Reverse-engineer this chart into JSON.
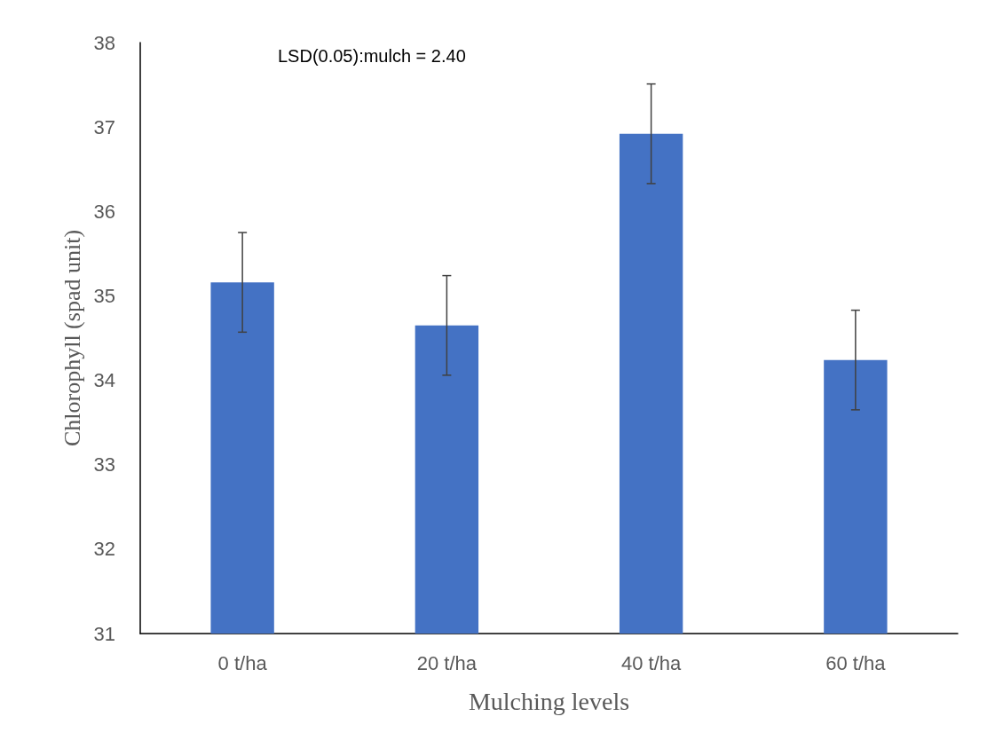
{
  "chart_data": {
    "type": "bar",
    "xlabel": "Mulching levels",
    "ylabel": "Chlorophyll (spad unit)",
    "annotations": [
      "LSD(0.05):mulch = 2.40"
    ],
    "categories": [
      "0 t/ha",
      "20 t/ha",
      "40 t/ha",
      "60 t/ha"
    ],
    "values": [
      35.16,
      34.65,
      36.92,
      34.24
    ],
    "errors": [
      0.59,
      0.59,
      0.59,
      0.59
    ],
    "color": "#4472c4",
    "ylim": [
      31,
      38
    ],
    "yticks": [
      31,
      32,
      33,
      34,
      35,
      36,
      37,
      38
    ],
    "grid": false
  }
}
